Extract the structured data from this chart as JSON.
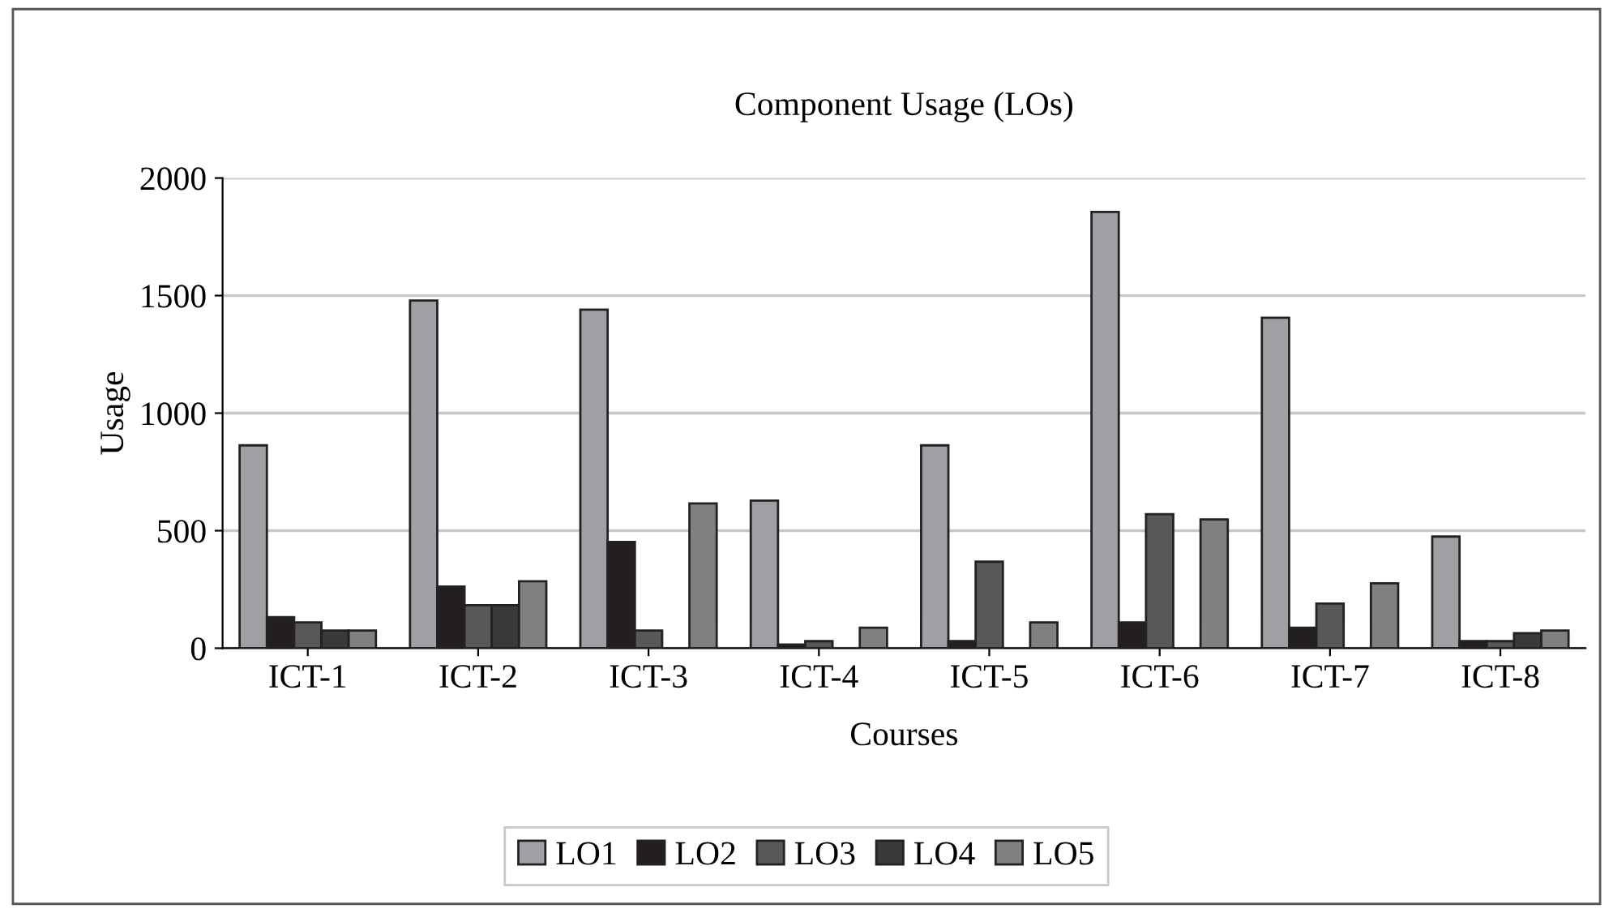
{
  "chart_data": {
    "type": "bar",
    "title": "Component Usage (LOs)",
    "xlabel": "Courses",
    "ylabel": "Usage",
    "categories": [
      "ICT-1",
      "ICT-2",
      "ICT-3",
      "ICT-4",
      "ICT-5",
      "ICT-6",
      "ICT-7",
      "ICT-8"
    ],
    "series": [
      {
        "name": "LO1",
        "color": "#a0a0a4",
        "values": [
          863,
          1479,
          1440,
          628,
          863,
          1856,
          1406,
          475
        ]
      },
      {
        "name": "LO2",
        "color": "#231f20",
        "values": [
          132,
          262,
          452,
          16,
          30,
          110,
          87,
          30
        ]
      },
      {
        "name": "LO3",
        "color": "#58585a",
        "values": [
          110,
          183,
          75,
          30,
          368,
          570,
          190,
          30
        ]
      },
      {
        "name": "LO4",
        "color": "#3a3a3c",
        "values": [
          75,
          183,
          null,
          null,
          null,
          null,
          null,
          64
        ]
      },
      {
        "name": "LO5",
        "color": "#808082",
        "values": [
          75,
          285,
          616,
          87,
          110,
          548,
          276,
          75
        ]
      }
    ],
    "ylim": [
      0,
      2000
    ],
    "yticks": [
      0,
      500,
      1000,
      1500,
      2000
    ],
    "grid": "y",
    "legend": "bottom"
  }
}
